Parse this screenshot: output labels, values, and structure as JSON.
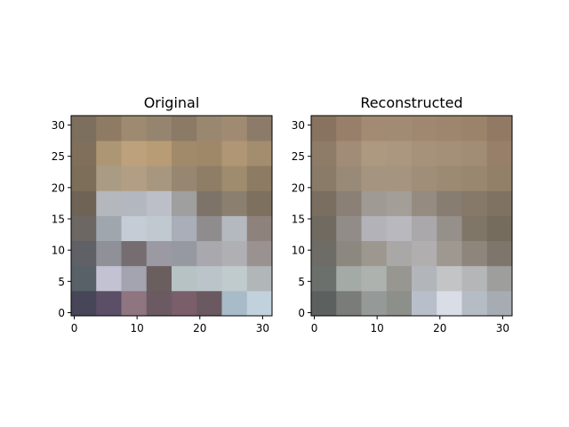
{
  "chart_data": [
    {
      "type": "heatmap",
      "title": "Original",
      "xlabel": "",
      "ylabel": "",
      "grid": false,
      "xlim": [
        -0.5,
        31.5
      ],
      "ylim": [
        31.5,
        -0.5
      ],
      "xticks": [
        0,
        10,
        20,
        30
      ],
      "yticks": [
        0,
        5,
        10,
        15,
        20,
        25,
        30
      ],
      "image_rows": [
        "#464658 #5a4f66 #8e7580 #6b5a61 #7a5e6a #6b5962 #a7bbc8 #c2d2dc",
        "#586068 #c2c2d2 #a3a4b0 #6a5e5e #b7c2c4 #bbc5c9 #c0cbcd #b1b6b8",
        "#5f6166 #8f9098 #766d70 #9b9aa2 #969aa0 #a8a8ae #b0b0b4 #9a9291",
        "#6d6763 #a0a6ae #c5ccd6 #c0c8d0 #a9aeb8 #8f8c8e #b4b8bf #8e827c",
        "#6f6355 #b4b8bc #b3b7bf #bcbfc7 #9f9f9f #7e7368 #8b7f70 #7e705f",
        "#7d6e59 #aa9c84 #b29e83 #a8977f #978771 #8f7e66 #9f8b6e #8e7b63",
        "#806f5a #ad9674 #bca17c #b89c75 #a18a6a #9f8867 #b09675 #a38d6f",
        "#7d6f5e #8f7b64 #9e8a70 #95846e #8a7a66 #9a8770 #a08b72 #8c7b69"
      ]
    },
    {
      "type": "heatmap",
      "title": "Reconstructed",
      "xlabel": "",
      "ylabel": "",
      "grid": false,
      "xlim": [
        -0.5,
        31.5
      ],
      "ylim": [
        31.5,
        -0.5
      ],
      "xticks": [
        0,
        10,
        20,
        30
      ],
      "yticks": [
        0,
        5,
        10,
        15,
        20,
        25,
        30
      ],
      "image_rows": [
        "#5c615f #7a7c7a #959a98 #8d8f8b #b8bfca #d8dde6 #b6bcc4 #a6acb2",
        "#6c706c #a4aaa6 #aeb2ae #979690 #b2b6ba #c2c4c6 #b4b6b8 #9e9e9c",
        "#6e6c66 #8c8880 #9c9890 #aaa8a6 #b0aeae #9e9890 #8e867c #7e766c",
        "#706a60 #928c88 #b2b2b8 #b8b8be #aaa8aa #96908a #807668 #766c5e",
        "#7a6e60 #8a8076 #a09a94 #a49e98 #958b80 #877d70 #86796a #807262",
        "#8a7a68 #998a77 #a59480 #a5947f #a08e78 #9c8a73 #998770 #928069",
        "#8e7b68 #a18d77 #ad9880 #ab9680 #a6917b #a48f78 #a18c75 #987f6a",
        "#87735f #977f6a #a38a73 #a28b73 #a08870 #9e866e #9b836b #917a64"
      ]
    }
  ]
}
